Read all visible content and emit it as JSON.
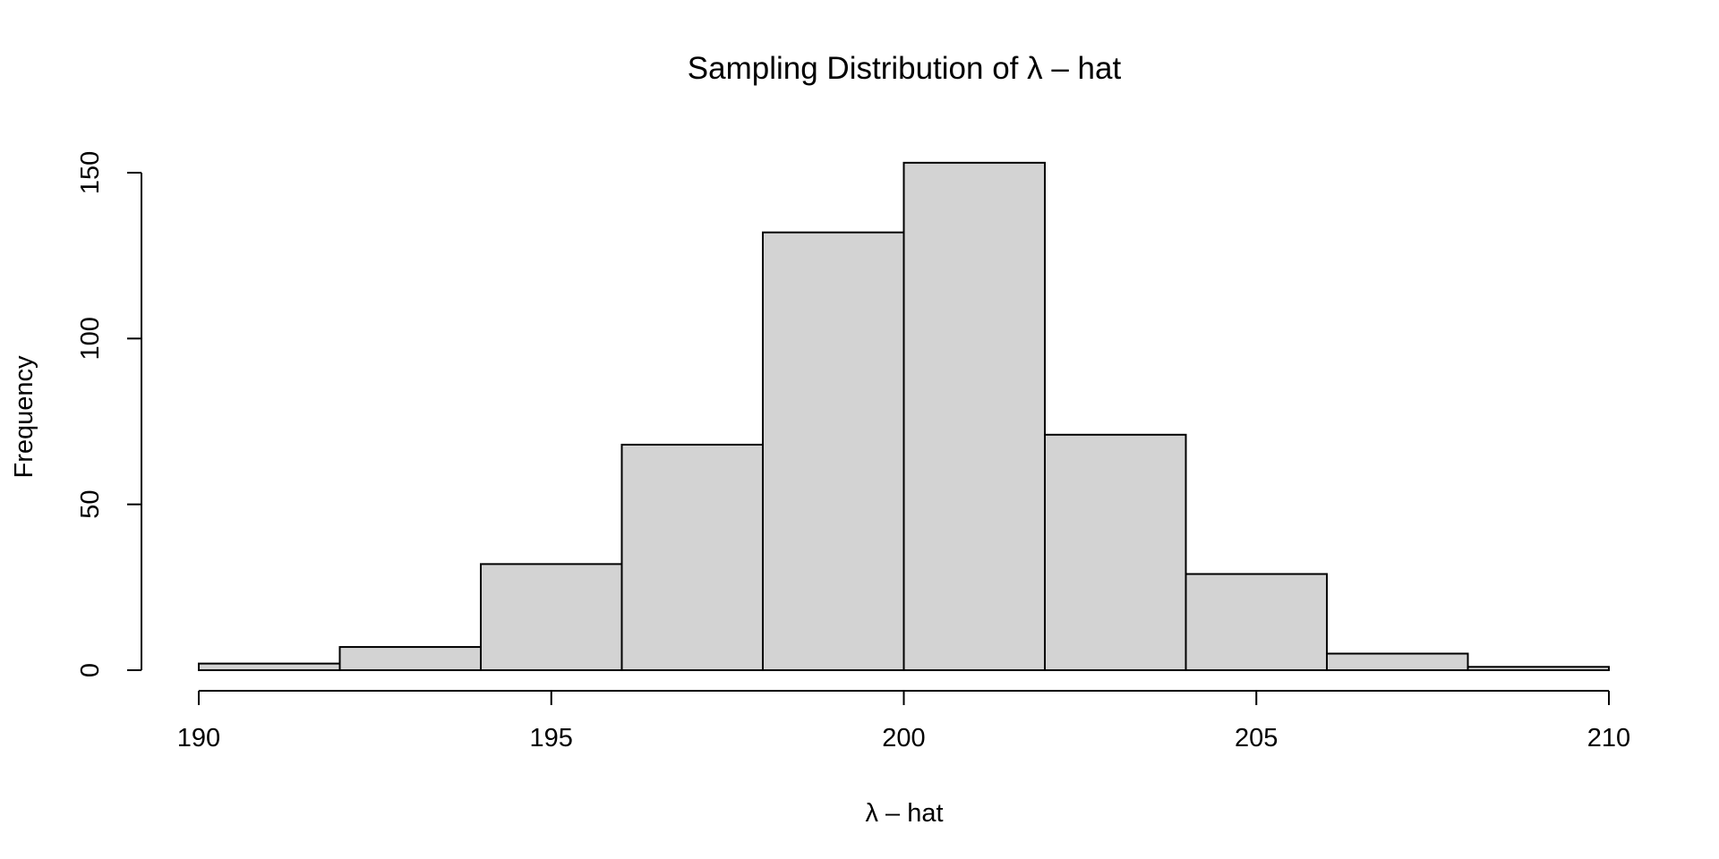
{
  "chart_data": {
    "type": "bar",
    "subtype": "histogram",
    "title": "Sampling Distribution of λ – hat",
    "xlabel": "λ – hat",
    "ylabel": "Frequency",
    "bins": [
      {
        "x0": 190,
        "x1": 192,
        "count": 2
      },
      {
        "x0": 192,
        "x1": 194,
        "count": 7
      },
      {
        "x0": 194,
        "x1": 196,
        "count": 32
      },
      {
        "x0": 196,
        "x1": 198,
        "count": 68
      },
      {
        "x0": 198,
        "x1": 200,
        "count": 132
      },
      {
        "x0": 200,
        "x1": 202,
        "count": 153
      },
      {
        "x0": 202,
        "x1": 204,
        "count": 71
      },
      {
        "x0": 204,
        "x1": 206,
        "count": 29
      },
      {
        "x0": 206,
        "x1": 208,
        "count": 5
      },
      {
        "x0": 208,
        "x1": 210,
        "count": 1
      }
    ],
    "xlim": [
      190,
      210
    ],
    "ylim": [
      0,
      150
    ],
    "x_ticks": [
      "190",
      "195",
      "200",
      "205",
      "210"
    ],
    "y_ticks": [
      "0",
      "50",
      "100",
      "150"
    ],
    "bar_fill": "#d3d3d3",
    "bar_stroke": "#000000",
    "grid": false,
    "legend": "none"
  }
}
